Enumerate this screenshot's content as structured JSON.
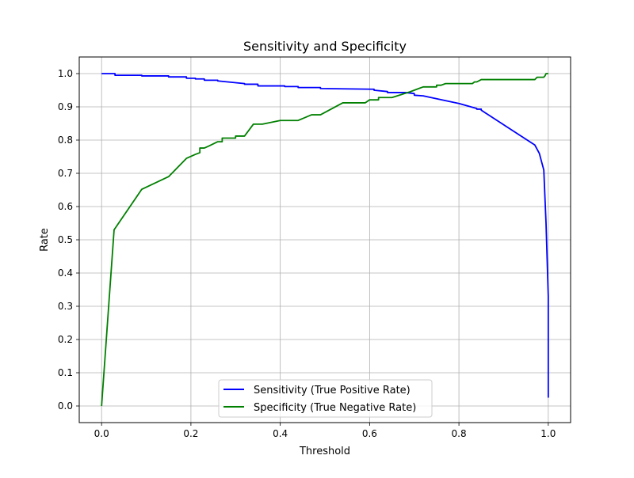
{
  "chart_data": {
    "type": "line",
    "title": "Sensitivity and Specificity",
    "xlabel": "Threshold",
    "ylabel": "Rate",
    "xlim": [
      -0.05,
      1.05
    ],
    "ylim": [
      -0.05,
      1.05
    ],
    "xticks": [
      0.0,
      0.2,
      0.4,
      0.6,
      0.8,
      1.0
    ],
    "xtick_labels": [
      "0.0",
      "0.2",
      "0.4",
      "0.6",
      "0.8",
      "1.0"
    ],
    "yticks": [
      0.0,
      0.1,
      0.2,
      0.3,
      0.4,
      0.5,
      0.6,
      0.7,
      0.8,
      0.9,
      1.0
    ],
    "ytick_labels": [
      "0.0",
      "0.1",
      "0.2",
      "0.3",
      "0.4",
      "0.5",
      "0.6",
      "0.7",
      "0.8",
      "0.9",
      "1.0"
    ],
    "grid": true,
    "legend_position": "lower-center",
    "series": [
      {
        "name": "Sensitivity (True Positive Rate)",
        "color": "#0000ff",
        "x": [
          0.0,
          0.03,
          0.03,
          0.09,
          0.09,
          0.15,
          0.15,
          0.19,
          0.19,
          0.21,
          0.21,
          0.23,
          0.23,
          0.26,
          0.26,
          0.32,
          0.32,
          0.35,
          0.35,
          0.41,
          0.41,
          0.44,
          0.44,
          0.49,
          0.49,
          0.61,
          0.61,
          0.64,
          0.64,
          0.68,
          0.7,
          0.7,
          0.72,
          0.8,
          0.84,
          0.84,
          0.85,
          0.85,
          0.97,
          0.98,
          0.99,
          0.995,
          1.0,
          1.0
        ],
        "y": [
          1.0,
          1.0,
          0.995,
          0.995,
          0.993,
          0.993,
          0.99,
          0.99,
          0.986,
          0.986,
          0.984,
          0.984,
          0.98,
          0.98,
          0.978,
          0.97,
          0.968,
          0.968,
          0.963,
          0.963,
          0.961,
          0.961,
          0.958,
          0.958,
          0.955,
          0.953,
          0.95,
          0.946,
          0.943,
          0.943,
          0.94,
          0.935,
          0.933,
          0.91,
          0.895,
          0.893,
          0.893,
          0.89,
          0.785,
          0.76,
          0.71,
          0.55,
          0.33,
          0.025
        ]
      },
      {
        "name": "Specificity (True Negative Rate)",
        "color": "#008000",
        "x": [
          0.0,
          0.028,
          0.09,
          0.15,
          0.19,
          0.21,
          0.22,
          0.22,
          0.23,
          0.24,
          0.26,
          0.27,
          0.27,
          0.3,
          0.3,
          0.32,
          0.34,
          0.36,
          0.4,
          0.44,
          0.47,
          0.49,
          0.54,
          0.59,
          0.6,
          0.62,
          0.62,
          0.65,
          0.69,
          0.71,
          0.72,
          0.75,
          0.75,
          0.76,
          0.77,
          0.83,
          0.835,
          0.84,
          0.85,
          0.97,
          0.975,
          0.99,
          0.993,
          0.995,
          1.0
        ],
        "y": [
          0.0,
          0.53,
          0.652,
          0.69,
          0.745,
          0.757,
          0.762,
          0.776,
          0.776,
          0.782,
          0.795,
          0.795,
          0.806,
          0.806,
          0.812,
          0.812,
          0.848,
          0.848,
          0.859,
          0.859,
          0.876,
          0.876,
          0.912,
          0.912,
          0.921,
          0.921,
          0.928,
          0.928,
          0.945,
          0.955,
          0.96,
          0.96,
          0.965,
          0.965,
          0.97,
          0.97,
          0.975,
          0.975,
          0.982,
          0.982,
          0.989,
          0.989,
          0.994,
          1.0,
          1.0
        ]
      }
    ]
  }
}
